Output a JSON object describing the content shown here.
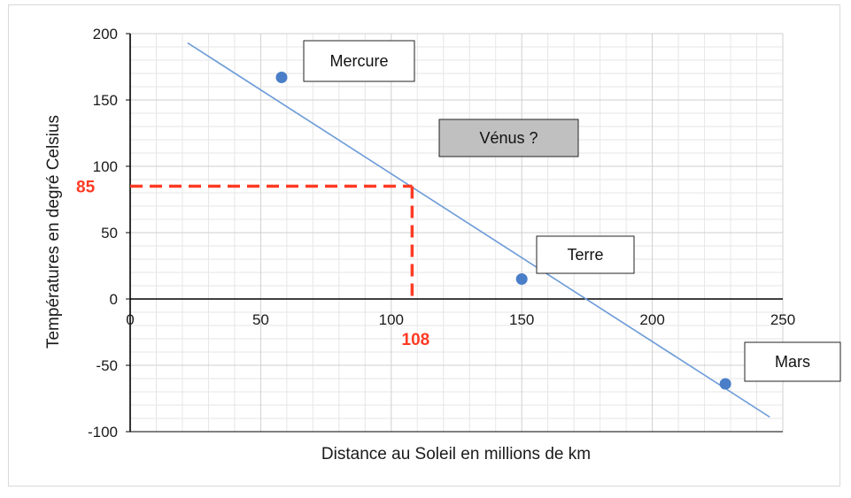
{
  "chart_data": {
    "type": "scatter",
    "xlabel": "Distance au Soleil en millions de km",
    "ylabel": "Températures en degré Celsius",
    "xlim": [
      0,
      250
    ],
    "ylim": [
      -100,
      200
    ],
    "x_ticks": [
      "0",
      "50",
      "100",
      "150",
      "200",
      "250"
    ],
    "y_ticks": [
      "200",
      "150",
      "100",
      "50",
      "0",
      "-50",
      "-100"
    ],
    "grid": true,
    "points": [
      {
        "x": 58,
        "y": 167
      },
      {
        "x": 150,
        "y": 15
      },
      {
        "x": 228,
        "y": -64
      }
    ],
    "trendline": {
      "x": [
        22,
        245
      ],
      "y": [
        193,
        -89
      ]
    },
    "labels": [
      {
        "text": "Mercure",
        "highlight": false
      },
      {
        "text": "Vénus ?",
        "highlight": true
      },
      {
        "text": "Terre",
        "highlight": false
      },
      {
        "text": "Mars",
        "highlight": false
      }
    ],
    "reading": {
      "x": 108,
      "y": 85,
      "x_label": "108",
      "y_label": "85"
    },
    "colors": {
      "points": "#4a7ec8",
      "trendline": "#6a9ad8",
      "reading": "#ff3b24",
      "highlight_box": "#c0c0c0"
    }
  }
}
